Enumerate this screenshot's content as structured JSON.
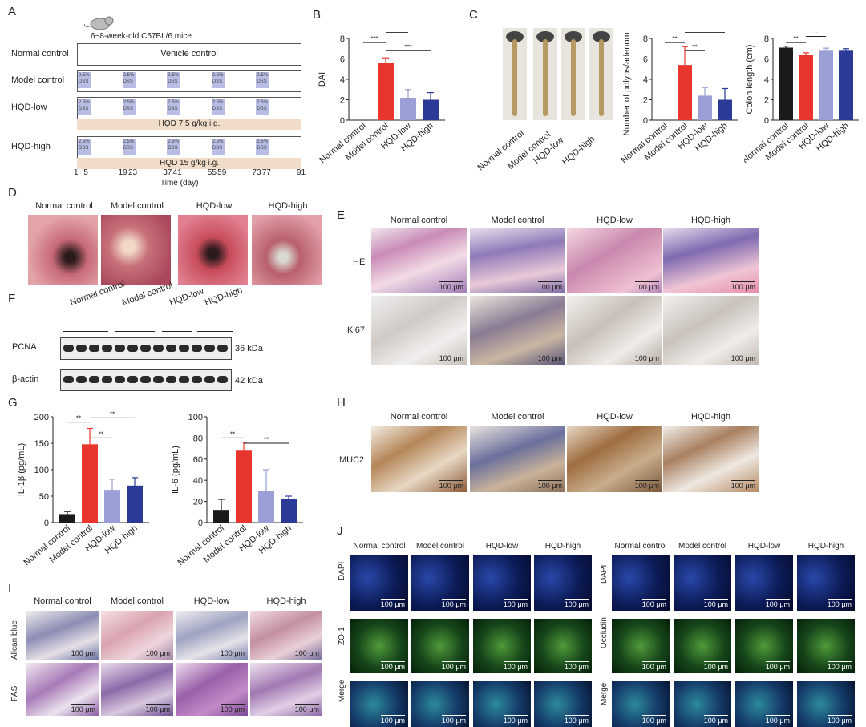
{
  "panels": [
    "A",
    "B",
    "C",
    "D",
    "E",
    "F",
    "G",
    "H",
    "I",
    "J"
  ],
  "groups": [
    "Normal control",
    "Model control",
    "HQD-low",
    "HQD-high"
  ],
  "panelA": {
    "mouse_label": "6~8-week-old C57BL/6 mice",
    "rows": [
      "Normal control",
      "Model control",
      "HQD-low",
      "HQD-high"
    ],
    "vehicle": "Vehicle control",
    "dss_label_1": "2.5%",
    "dss_label_2": "DSS",
    "dose_low": "HQD 7.5 g/kg i.g.",
    "dose_high": "HQD 15 g/kg i.g.",
    "days": [
      "1",
      "5",
      "19",
      "23",
      "37",
      "41",
      "55",
      "59",
      "73",
      "77",
      "91"
    ],
    "xlabel": "Time (day)"
  },
  "sig": {
    "three": "***",
    "two": "**"
  },
  "chart_data": [
    {
      "id": "B",
      "type": "bar",
      "ylabel": "DAI",
      "categories": [
        "Normal control",
        "Model control",
        "HQD-low",
        "HQD-high"
      ],
      "values": [
        0,
        5.6,
        2.2,
        2.0
      ],
      "errors": [
        0,
        0.5,
        0.8,
        0.7
      ],
      "ylim": [
        0,
        8
      ],
      "yticks": [
        "0",
        "2",
        "4",
        "6",
        "8"
      ],
      "colors": [
        "#1a1a1a",
        "#e8352e",
        "#9aa0d6",
        "#2b3a97"
      ]
    },
    {
      "id": "C1",
      "type": "bar",
      "ylabel": "Number of polyps/adenomas",
      "categories": [
        "Normal control",
        "Model control",
        "HQD-low",
        "HQD-high"
      ],
      "values": [
        0,
        5.4,
        2.4,
        2.0
      ],
      "errors": [
        0,
        1.8,
        0.8,
        1.1
      ],
      "ylim": [
        0,
        8
      ],
      "yticks": [
        "0",
        "2",
        "4",
        "6",
        "8"
      ],
      "colors": [
        "#1a1a1a",
        "#e8352e",
        "#9aa0d6",
        "#2b3a97"
      ]
    },
    {
      "id": "C2",
      "type": "bar",
      "ylabel": "Colon length (cm)",
      "categories": [
        "Normal control",
        "Model control",
        "HQD-low",
        "HQD-high"
      ],
      "values": [
        7.1,
        6.4,
        6.8,
        6.8
      ],
      "errors": [
        0.15,
        0.2,
        0.25,
        0.2
      ],
      "ylim": [
        0,
        8
      ],
      "yticks": [
        "0",
        "2",
        "4",
        "6",
        "8"
      ],
      "colors": [
        "#1a1a1a",
        "#e8352e",
        "#9aa0d6",
        "#2b3a97"
      ]
    },
    {
      "id": "G1",
      "type": "bar",
      "ylabel": "IL-1β (pg/mL)",
      "categories": [
        "Normal control",
        "Model control",
        "HQD-low",
        "HQD-high"
      ],
      "values": [
        16,
        148,
        62,
        70
      ],
      "errors": [
        5,
        30,
        20,
        15
      ],
      "ylim": [
        0,
        200
      ],
      "yticks": [
        "0",
        "50",
        "100",
        "150",
        "200"
      ],
      "colors": [
        "#1a1a1a",
        "#e8352e",
        "#9aa0d6",
        "#2b3a97"
      ]
    },
    {
      "id": "G2",
      "type": "bar",
      "ylabel": "IL-6 (pg/mL)",
      "categories": [
        "Normal control",
        "Model control",
        "HQD-low",
        "HQD-high"
      ],
      "values": [
        12,
        68,
        30,
        22
      ],
      "errors": [
        10,
        8,
        20,
        3
      ],
      "ylim": [
        0,
        100
      ],
      "yticks": [
        "0",
        "20",
        "40",
        "60",
        "80",
        "100"
      ],
      "colors": [
        "#1a1a1a",
        "#e8352e",
        "#9aa0d6",
        "#2b3a97"
      ]
    }
  ],
  "panelE": {
    "rows": [
      "HE",
      "Ki67"
    ]
  },
  "panelF": {
    "pcna": "PCNA",
    "actin": "β-actin",
    "pcna_kda": "36 kDa",
    "actin_kda": "42 kDa"
  },
  "panelH": {
    "row": "MUC2"
  },
  "panelI": {
    "rows": [
      "Alican blue",
      "PAS"
    ]
  },
  "panelJ": {
    "left_rows": [
      "DAPI",
      "ZO-1",
      "Merge"
    ],
    "right_rows": [
      "DAPI",
      "Occludin",
      "Merge"
    ]
  },
  "scalebar": "100 μm"
}
